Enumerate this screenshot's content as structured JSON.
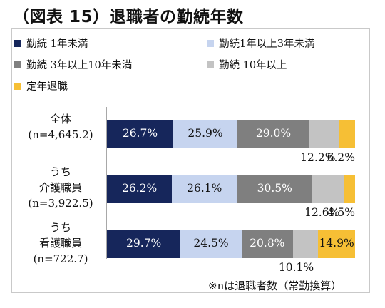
{
  "title": "（図表 15）退職者の勤続年数",
  "footnote": "※nは退職者数（常勤換算）",
  "chart_data": {
    "type": "bar",
    "orientation": "horizontal",
    "stacked": "percent",
    "legend_position": "top",
    "series": [
      {
        "name": "勤続 1年未満",
        "color": "#16265b",
        "values": [
          26.7,
          26.2,
          29.7
        ],
        "label_color": "#ffffff"
      },
      {
        "name": "勤続1年以上3年未満",
        "color": "#c6d4ef",
        "values": [
          25.9,
          26.1,
          24.5
        ],
        "label_color": "#111111"
      },
      {
        "name": "勤続 3年以上10年未満",
        "color": "#7f7f7f",
        "values": [
          29.0,
          30.5,
          20.8
        ],
        "label_color": "#ffffff"
      },
      {
        "name": "勤続 10年以上",
        "color": "#c3c3c3",
        "values": [
          12.2,
          12.6,
          10.1
        ],
        "label_color": "#111111"
      },
      {
        "name": "定年退職",
        "color": "#f6bf35",
        "values": [
          6.2,
          4.5,
          14.9
        ],
        "label_color": "#111111"
      }
    ],
    "categories": [
      {
        "lines": [
          "全体",
          "(n=4,645.2)"
        ]
      },
      {
        "lines": [
          "うち",
          "介護職員",
          "(n=3,922.5)"
        ]
      },
      {
        "lines": [
          "うち",
          "看護職員",
          "(n=722.7)"
        ]
      }
    ],
    "labels": [
      [
        "26.7%",
        "25.9%",
        "29.0%",
        "12.2%",
        "6.2%"
      ],
      [
        "26.2%",
        "26.1%",
        "30.5%",
        "12.6%",
        "4.5%"
      ],
      [
        "29.7%",
        "24.5%",
        "20.8%",
        "10.1%",
        "14.9%"
      ]
    ],
    "outside_labels": [
      [
        3,
        4
      ],
      [
        3,
        4
      ],
      [
        3
      ]
    ],
    "xlim": [
      0,
      100
    ]
  }
}
